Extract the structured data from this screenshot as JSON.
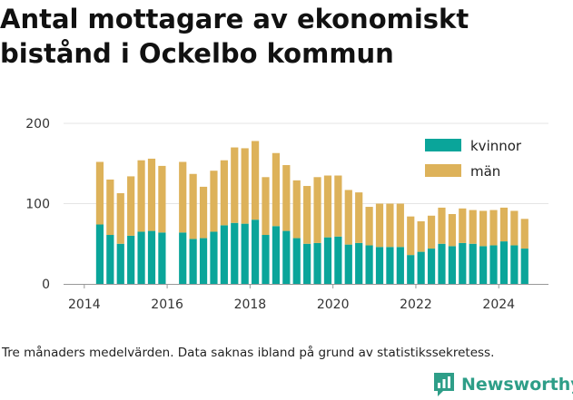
{
  "title": "Antal mottagare av ekonomiskt\nbistånd i Ockelbo kommun",
  "caption": "Tre månaders medelvärden. Data saknas ibland på grund av statistikssekretess.",
  "brand": {
    "name": "Newsworthy",
    "icon": "newsworthy-logo-icon",
    "color": "#2e9e88"
  },
  "colors": {
    "kvinnor": "#0aa59a",
    "man": "#ddb25a",
    "axis": "#999999",
    "grid": "#e5e5e5"
  },
  "chart_data": {
    "type": "bar",
    "stacked": true,
    "title": "Antal mottagare av ekonomiskt bistånd i Ockelbo kommun",
    "xlabel": "",
    "ylabel": "",
    "ylim": [
      0,
      200
    ],
    "yticks": [
      0,
      100,
      200
    ],
    "xticks": [
      "2014",
      "2016",
      "2018",
      "2020",
      "2022",
      "2024"
    ],
    "legend_position": "top-right",
    "x": [
      2014.375,
      2014.625,
      2014.875,
      2015.125,
      2015.375,
      2015.625,
      2015.875,
      2016.125,
      2016.375,
      2016.625,
      2016.875,
      2017.125,
      2017.375,
      2017.625,
      2017.875,
      2018.125,
      2018.375,
      2018.625,
      2018.875,
      2019.125,
      2019.375,
      2019.625,
      2019.875,
      2020.125,
      2020.375,
      2020.625,
      2020.875,
      2021.125,
      2021.375,
      2021.625,
      2021.875,
      2022.125,
      2022.375,
      2022.625,
      2022.875,
      2023.125,
      2023.375,
      2023.625,
      2023.875,
      2024.125,
      2024.375,
      2024.625
    ],
    "series": [
      {
        "name": "kvinnor",
        "values": [
          74,
          61,
          50,
          60,
          65,
          66,
          64,
          null,
          64,
          56,
          57,
          65,
          73,
          76,
          75,
          80,
          61,
          72,
          66,
          57,
          50,
          51,
          58,
          59,
          49,
          51,
          48,
          46,
          46,
          46,
          36,
          40,
          44,
          50,
          47,
          51,
          50,
          47,
          48,
          53,
          48,
          44
        ]
      },
      {
        "name": "män",
        "values": [
          78,
          69,
          63,
          74,
          89,
          90,
          83,
          null,
          88,
          81,
          64,
          76,
          81,
          94,
          94,
          98,
          72,
          91,
          82,
          72,
          72,
          82,
          77,
          76,
          68,
          63,
          48,
          54,
          54,
          54,
          48,
          38,
          41,
          45,
          40,
          43,
          42,
          44,
          44,
          42,
          43,
          37
        ]
      }
    ]
  }
}
